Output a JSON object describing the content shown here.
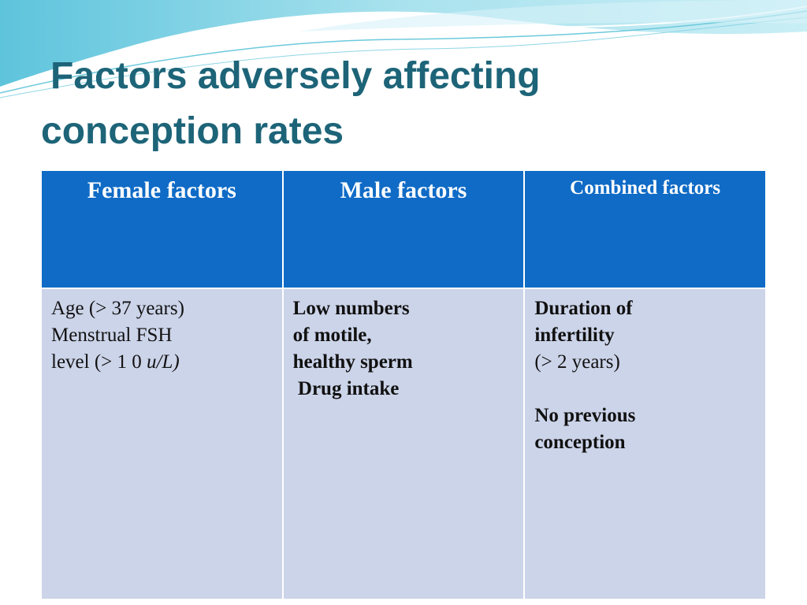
{
  "slide": {
    "title_line1": "Factors adversely affecting",
    "title_line2": "conception rates"
  },
  "table": {
    "headers": [
      "Female factors",
      "Male factors",
      "Combined factors"
    ],
    "female": {
      "line1": "Age (> 37 years)",
      "line2": "Menstrual FSH",
      "line3_prefix": "level (> 1 0 ",
      "line3_italic": "u/L",
      "line3_suffix": ")"
    },
    "male": [
      "Low numbers",
      "of motile,",
      "healthy sperm",
      " Drug intake"
    ],
    "combined": [
      "Duration of",
      "infertility",
      "(> 2 years)",
      "No previous",
      "conception"
    ]
  },
  "colors": {
    "title": "#1d6478",
    "header_bg": "#0f6bc6",
    "body_bg": "#ccd4e9",
    "wave": "#9ad8e6"
  }
}
